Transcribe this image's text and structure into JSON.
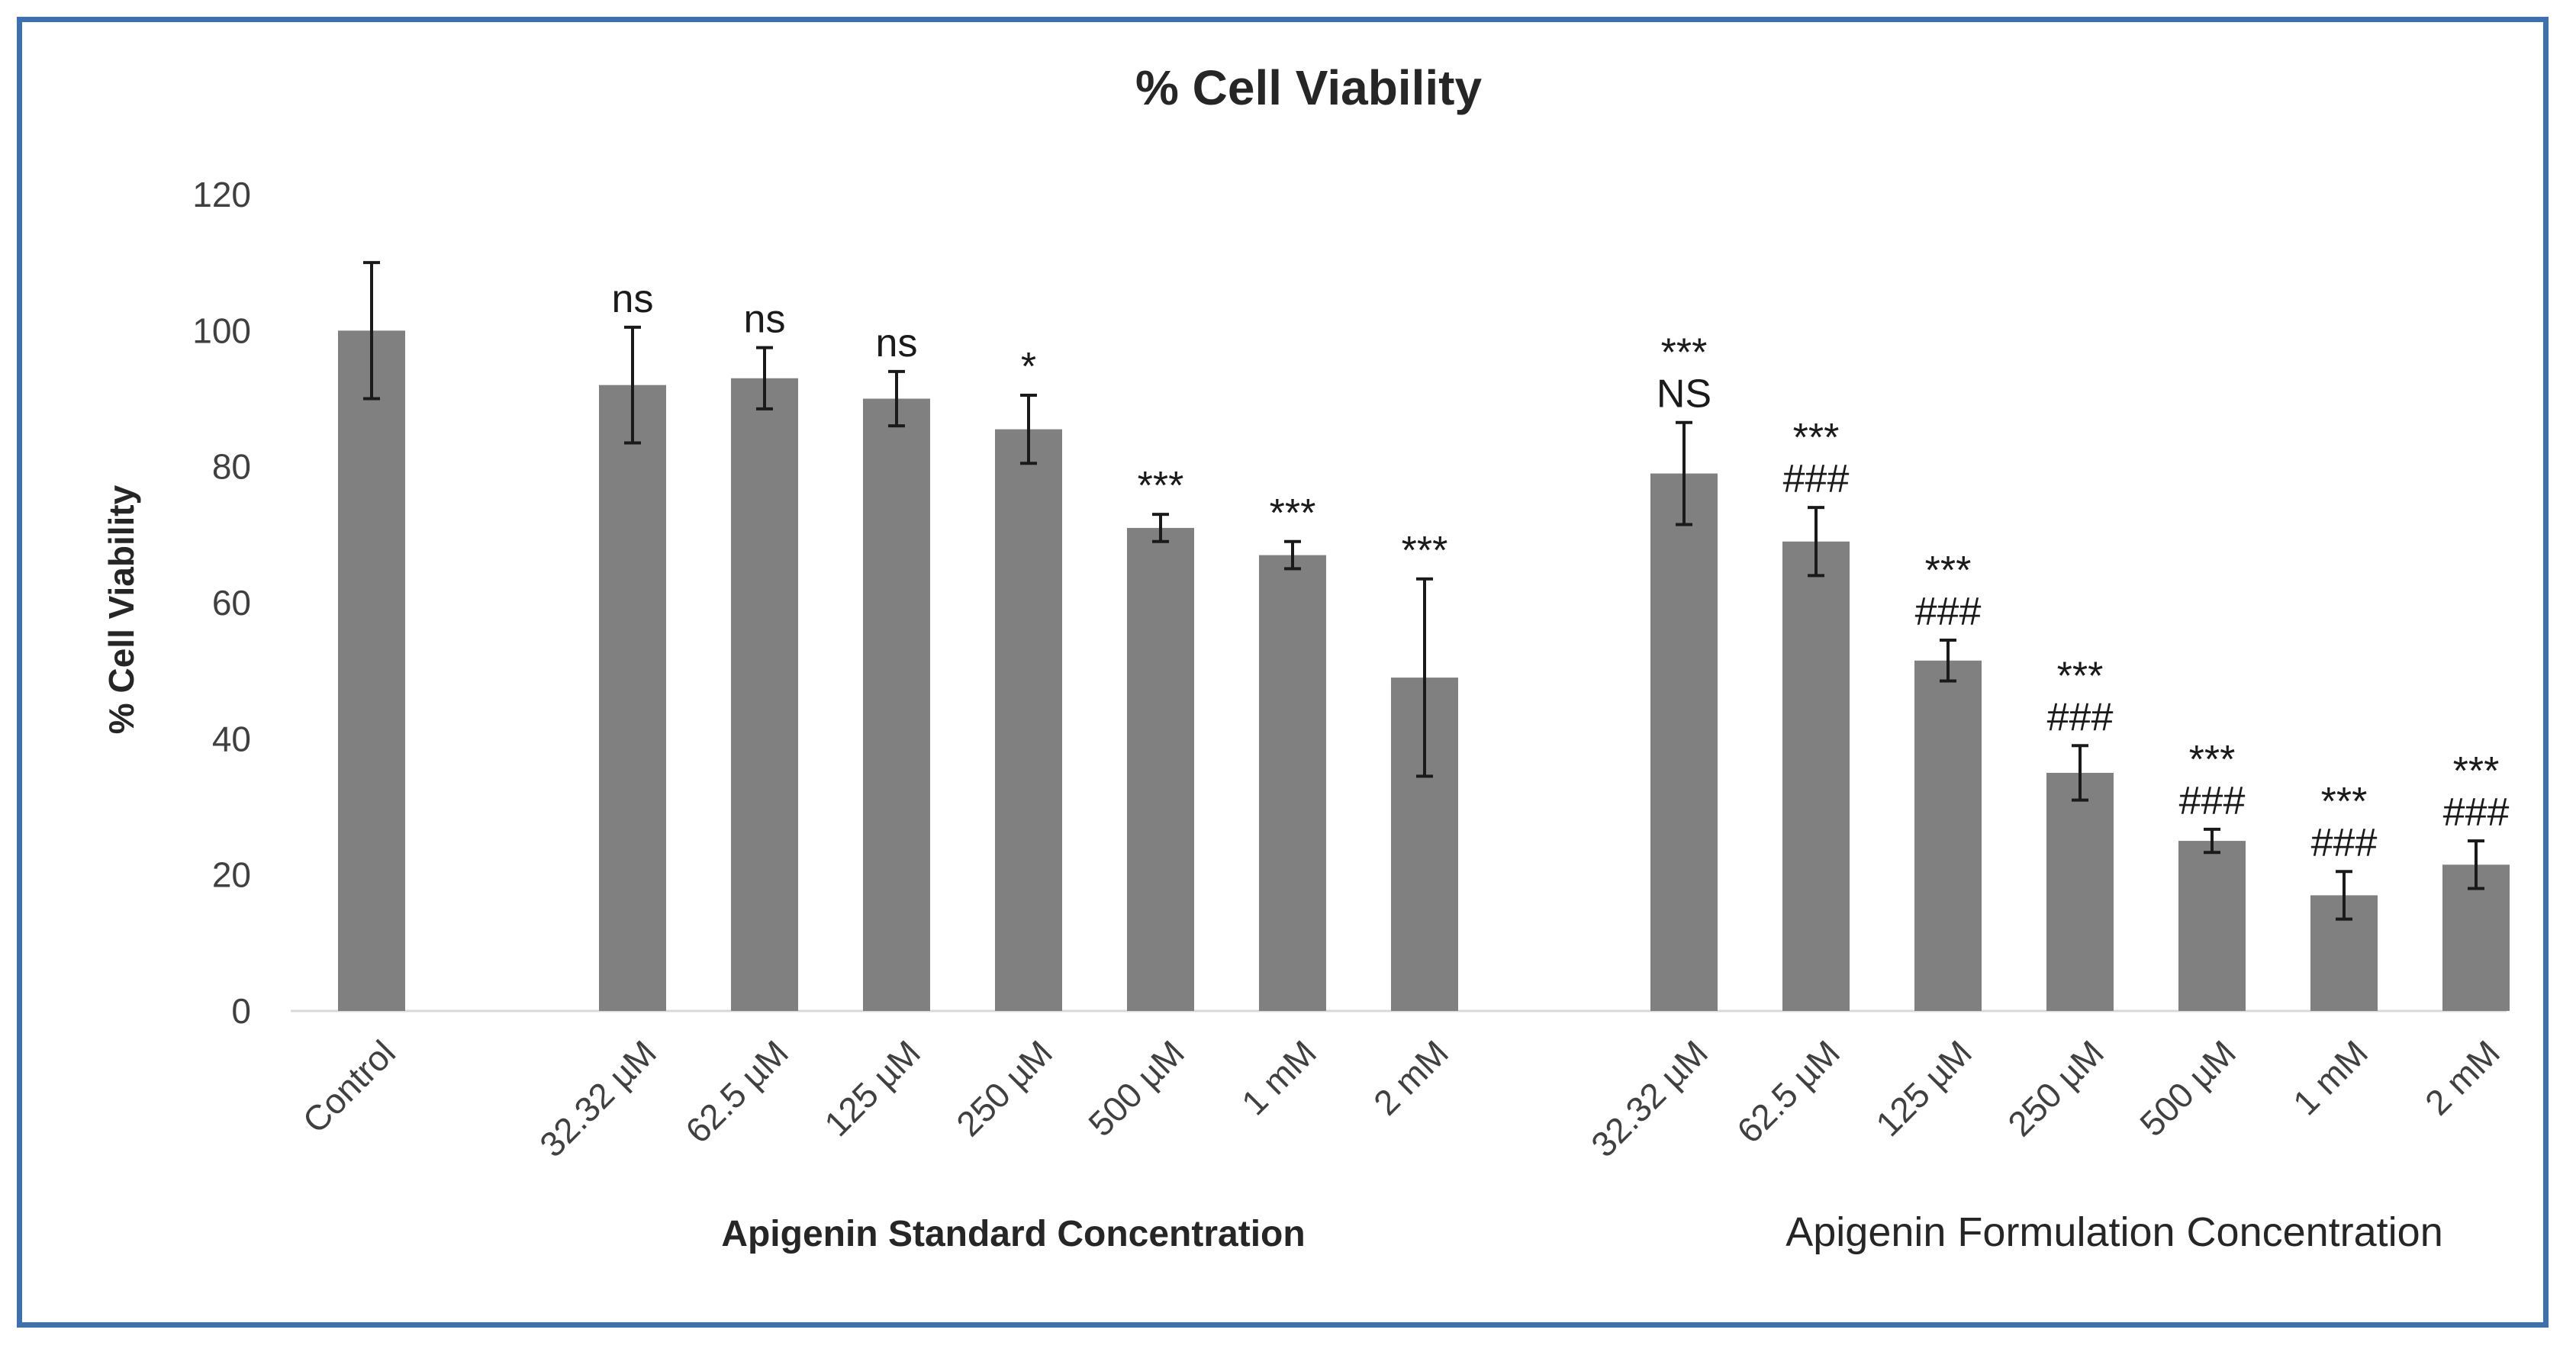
{
  "chart_data": {
    "type": "bar",
    "title": "% Cell Viability",
    "ylabel": "% Cell Viability",
    "xlabel": "",
    "ylim": [
      0,
      120
    ],
    "yticks": [
      0,
      20,
      40,
      60,
      80,
      100,
      120
    ],
    "grid": false,
    "bar_color": "#808080",
    "groups": [
      {
        "label": "",
        "bold": false,
        "bars": [
          {
            "category": "Control",
            "value": 100,
            "error": 10,
            "sig": []
          }
        ]
      },
      {
        "label": "Apigenin Standard Concentration",
        "bold": true,
        "bars": [
          {
            "category": "32.32 µM",
            "value": 92,
            "error": 8.5,
            "sig": [
              "ns"
            ]
          },
          {
            "category": "62.5 µM",
            "value": 93,
            "error": 4.5,
            "sig": [
              "ns"
            ]
          },
          {
            "category": "125 µM",
            "value": 90,
            "error": 4,
            "sig": [
              "ns"
            ]
          },
          {
            "category": "250 µM",
            "value": 85.5,
            "error": 5,
            "sig": [
              "*"
            ]
          },
          {
            "category": "500 µM",
            "value": 71,
            "error": 2,
            "sig": [
              "***"
            ]
          },
          {
            "category": "1 mM",
            "value": 67,
            "error": 2,
            "sig": [
              "***"
            ]
          },
          {
            "category": "2 mM",
            "value": 49,
            "error": 14.5,
            "sig": [
              "***"
            ]
          }
        ]
      },
      {
        "label": "Apigenin Formulation Concentration",
        "bold": false,
        "bars": [
          {
            "category": "32.32 µM",
            "value": 79,
            "error": 7.5,
            "sig": [
              "***",
              "NS"
            ]
          },
          {
            "category": "62.5 µM",
            "value": 69,
            "error": 5,
            "sig": [
              "***",
              "###"
            ]
          },
          {
            "category": "125 µM",
            "value": 51.5,
            "error": 3,
            "sig": [
              "***",
              "###"
            ]
          },
          {
            "category": "250 µM",
            "value": 35,
            "error": 4,
            "sig": [
              "***",
              "###"
            ]
          },
          {
            "category": "500 µM",
            "value": 25,
            "error": 1.7,
            "sig": [
              "***",
              "###"
            ]
          },
          {
            "category": "1 mM",
            "value": 17,
            "error": 3.5,
            "sig": [
              "***",
              "###"
            ]
          },
          {
            "category": "2 mM",
            "value": 21.5,
            "error": 3.5,
            "sig": [
              "***",
              "###"
            ]
          }
        ]
      }
    ]
  }
}
